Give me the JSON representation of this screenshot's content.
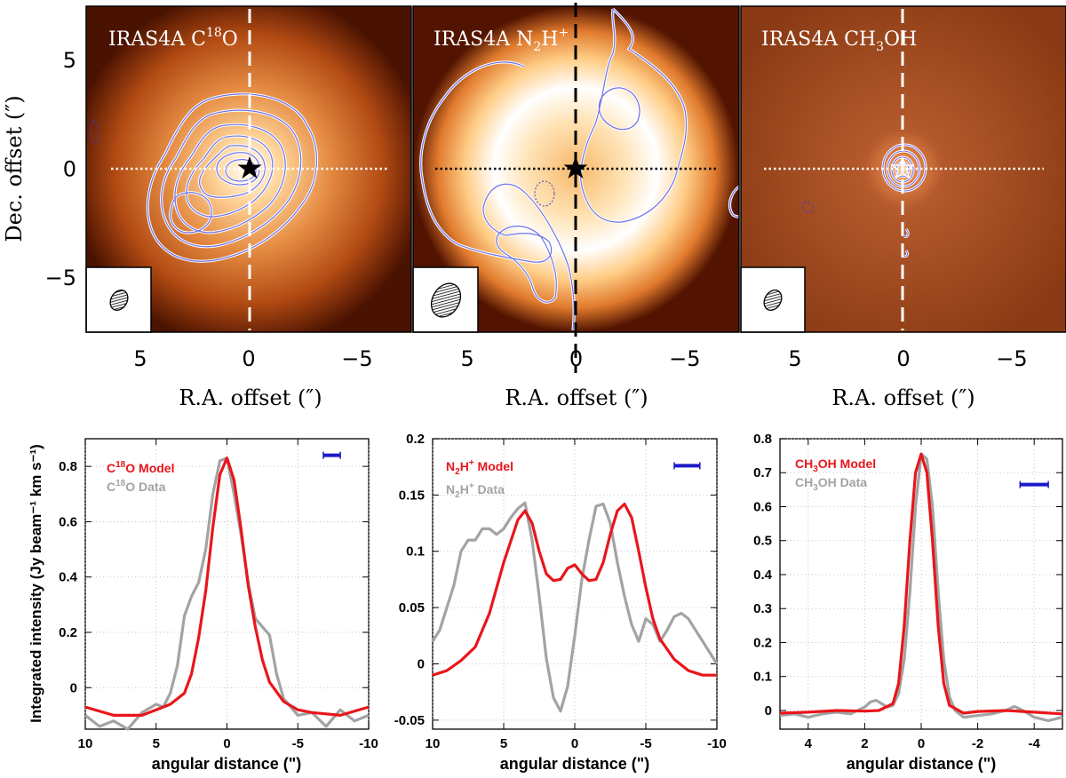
{
  "chart_data": [
    {
      "type": "heatmap",
      "title": "IRAS4A C18O",
      "title_parts": [
        "IRAS4A C",
        "18",
        "O"
      ],
      "xlabel": "R.A. offset (″)",
      "ylabel": "Dec. offset (″)",
      "xlim": [
        7.5,
        -7.5
      ],
      "ylim": [
        -7.5,
        7.5
      ],
      "xticks": [
        5,
        0,
        -5
      ],
      "yticks": [
        5,
        0,
        -5
      ],
      "xtick_labels": [
        "5",
        "0",
        "−5"
      ],
      "ytick_labels": [
        "5",
        "0",
        "−5"
      ],
      "source_position": [
        0,
        0
      ],
      "peak_offset": [
        0.3,
        0.1
      ],
      "colormap": "black-orange-white"
    },
    {
      "type": "heatmap",
      "title": "IRAS4A N2H+",
      "title_parts": [
        "IRAS4A N",
        "2",
        "H",
        "+"
      ],
      "xlabel": "R.A. offset (″)",
      "xlim": [
        7.5,
        -7.5
      ],
      "ylim": [
        -7.5,
        7.5
      ],
      "xticks": [
        5,
        0,
        -5
      ],
      "xtick_labels": [
        "5",
        "0",
        "−5"
      ],
      "source_position": [
        0,
        0
      ],
      "ring_radius_arcsec": 3.5,
      "colormap": "black-orange-white"
    },
    {
      "type": "heatmap",
      "title": "IRAS4A CH3OH",
      "title_parts": [
        "IRAS4A CH",
        "3",
        "OH"
      ],
      "xlabel": "R.A. offset (″)",
      "xlim": [
        7.5,
        -7.5
      ],
      "ylim": [
        -7.5,
        7.5
      ],
      "xticks": [
        5,
        0,
        -5
      ],
      "xtick_labels": [
        "5",
        "0",
        "−5"
      ],
      "source_position": [
        0,
        0
      ],
      "colormap": "black-orange-white"
    },
    {
      "type": "line",
      "xlabel": "angular distance (\")",
      "ylabel": "Integrated intensity (Jy beam⁻¹ km s⁻¹)",
      "xlim": [
        10,
        -10
      ],
      "ylim": [
        -0.15,
        0.9
      ],
      "xticks": [
        10,
        5,
        0,
        -5,
        -10
      ],
      "xtick_labels": [
        "10",
        "5",
        "0",
        "-5",
        "-10"
      ],
      "yticks": [
        0,
        0.2,
        0.4,
        0.6,
        0.8
      ],
      "ytick_labels": [
        "0",
        "0.2",
        "0.4",
        "0.6",
        "0.8"
      ],
      "beam_bar": {
        "x": [
          -6.8,
          -8
        ],
        "y": 0.84
      },
      "series": [
        {
          "name": "C18O Model",
          "legend_parts": [
            "C",
            "18",
            "O Model"
          ],
          "color": "#e8161b",
          "x": [
            10,
            8,
            6,
            5,
            4,
            3,
            2.5,
            2,
            1.5,
            1,
            0.5,
            0,
            -0.5,
            -1,
            -1.5,
            -2,
            -2.5,
            -3,
            -4,
            -5,
            -6,
            -8,
            -10
          ],
          "y": [
            -0.07,
            -0.1,
            -0.1,
            -0.08,
            -0.06,
            -0.02,
            0.05,
            0.18,
            0.35,
            0.58,
            0.77,
            0.83,
            0.75,
            0.57,
            0.37,
            0.22,
            0.1,
            0.02,
            -0.05,
            -0.08,
            -0.09,
            -0.1,
            -0.07
          ]
        },
        {
          "name": "C18O Data",
          "legend_parts": [
            "C",
            "18",
            "O Data"
          ],
          "color": "#a3a3a3",
          "x": [
            10,
            9,
            8,
            7,
            6,
            5,
            4.5,
            4,
            3.5,
            3,
            2.5,
            2,
            1.5,
            1,
            0.5,
            0,
            -0.5,
            -1,
            -1.5,
            -2,
            -2.5,
            -3,
            -3.5,
            -4,
            -5,
            -6,
            -7,
            -8,
            -9,
            -10
          ],
          "y": [
            -0.1,
            -0.14,
            -0.12,
            -0.15,
            -0.09,
            -0.06,
            -0.07,
            -0.02,
            0.08,
            0.26,
            0.33,
            0.38,
            0.5,
            0.7,
            0.82,
            0.83,
            0.7,
            0.55,
            0.38,
            0.25,
            0.22,
            0.19,
            0.05,
            -0.04,
            -0.1,
            -0.09,
            -0.14,
            -0.08,
            -0.12,
            -0.1
          ]
        }
      ]
    },
    {
      "type": "line",
      "xlabel": "angular distance (\")",
      "xlim": [
        10,
        -10
      ],
      "ylim": [
        -0.058,
        0.2
      ],
      "xticks": [
        10,
        5,
        0,
        -5,
        -10
      ],
      "xtick_labels": [
        "10",
        "5",
        "0",
        "-5",
        "-10"
      ],
      "yticks": [
        -0.05,
        0,
        0.05,
        0.1,
        0.15,
        0.2
      ],
      "ytick_labels": [
        "-0.05",
        "0",
        "0.05",
        "0.1",
        "0.15",
        "0.2"
      ],
      "beam_bar": {
        "x": [
          -7,
          -8.8
        ],
        "y": 0.176
      },
      "series": [
        {
          "name": "N2H+ Model",
          "legend_parts": [
            "N",
            "2",
            "H",
            "+",
            " Model"
          ],
          "color": "#e8161b",
          "x": [
            10,
            9,
            8,
            7,
            6,
            5,
            4,
            3.5,
            3,
            2.5,
            2,
            1.5,
            1,
            0.5,
            0,
            -0.5,
            -1,
            -1.5,
            -2,
            -2.5,
            -3,
            -3.5,
            -4,
            -4.5,
            -5,
            -5.5,
            -6,
            -7,
            -8,
            -9,
            -10
          ],
          "y": [
            -0.01,
            -0.006,
            0.003,
            0.015,
            0.045,
            0.09,
            0.128,
            0.136,
            0.125,
            0.1,
            0.08,
            0.074,
            0.075,
            0.085,
            0.088,
            0.08,
            0.074,
            0.075,
            0.09,
            0.115,
            0.136,
            0.142,
            0.13,
            0.1,
            0.068,
            0.04,
            0.022,
            0.004,
            -0.006,
            -0.01,
            -0.01
          ]
        },
        {
          "name": "N2H+ Data",
          "legend_parts": [
            "N",
            "2",
            "H",
            "+",
            " Data"
          ],
          "color": "#a3a3a3",
          "x": [
            10,
            9.5,
            9,
            8.5,
            8,
            7.5,
            7,
            6.5,
            6,
            5.5,
            5,
            4.5,
            4,
            3.5,
            3,
            2.5,
            2,
            1.5,
            1,
            0.5,
            0,
            -0.5,
            -1,
            -1.5,
            -2,
            -2.5,
            -3,
            -3.5,
            -4,
            -4.5,
            -5,
            -5.5,
            -6,
            -6.5,
            -7,
            -7.5,
            -8,
            -8.5,
            -9,
            -10
          ],
          "y": [
            0.02,
            0.03,
            0.05,
            0.07,
            0.1,
            0.11,
            0.11,
            0.12,
            0.12,
            0.115,
            0.12,
            0.13,
            0.138,
            0.143,
            0.11,
            0.06,
            0.005,
            -0.03,
            -0.042,
            -0.02,
            0.025,
            0.075,
            0.11,
            0.14,
            0.142,
            0.125,
            0.09,
            0.06,
            0.035,
            0.02,
            0.04,
            0.035,
            0.02,
            0.03,
            0.042,
            0.045,
            0.04,
            0.03,
            0.02,
            0.0
          ]
        }
      ]
    },
    {
      "type": "line",
      "xlabel": "angular distance (\")",
      "xlim": [
        5,
        -5
      ],
      "ylim": [
        -0.055,
        0.8
      ],
      "xticks": [
        4,
        2,
        0,
        -2,
        -4
      ],
      "xtick_labels": [
        "4",
        "2",
        "0",
        "-2",
        "-4"
      ],
      "yticks": [
        0,
        0.1,
        0.2,
        0.3,
        0.4,
        0.5,
        0.6,
        0.7,
        0.8
      ],
      "ytick_labels": [
        "0",
        "0.1",
        "0.2",
        "0.3",
        "0.4",
        "0.5",
        "0.6",
        "0.7",
        "0.8"
      ],
      "beam_bar": {
        "x": [
          -3.5,
          -4.5
        ],
        "y": 0.665
      },
      "series": [
        {
          "name": "CH3OH Model",
          "legend_parts": [
            "CH",
            "3",
            "OH Model"
          ],
          "color": "#e8161b",
          "x": [
            5,
            4,
            3,
            2,
            1.5,
            1,
            0.8,
            0.6,
            0.4,
            0.2,
            0,
            -0.2,
            -0.4,
            -0.6,
            -0.8,
            -1,
            -1.5,
            -2,
            -3,
            -4,
            -5
          ],
          "y": [
            -0.008,
            -0.005,
            0.0,
            -0.002,
            0.0,
            0.02,
            0.08,
            0.25,
            0.5,
            0.7,
            0.755,
            0.7,
            0.5,
            0.25,
            0.08,
            0.015,
            -0.008,
            -0.003,
            0.0,
            -0.005,
            -0.01
          ]
        },
        {
          "name": "CH3OH Data",
          "legend_parts": [
            "CH",
            "3",
            "OH Data"
          ],
          "color": "#a3a3a3",
          "x": [
            5,
            4.5,
            4,
            3.5,
            3,
            2.5,
            2,
            1.8,
            1.6,
            1.4,
            1.2,
            1,
            0.8,
            0.6,
            0.4,
            0.2,
            0,
            -0.2,
            -0.4,
            -0.6,
            -0.8,
            -1,
            -1.2,
            -1.5,
            -2,
            -2.5,
            -3,
            -3.3,
            -3.6,
            -4,
            -4.5,
            -5
          ],
          "y": [
            -0.015,
            -0.01,
            -0.02,
            -0.01,
            -0.005,
            -0.01,
            0.01,
            0.025,
            0.03,
            0.02,
            0.01,
            0.015,
            0.05,
            0.15,
            0.35,
            0.6,
            0.755,
            0.74,
            0.6,
            0.35,
            0.15,
            0.04,
            0.0,
            -0.02,
            -0.015,
            -0.01,
            0.0,
            0.012,
            0.0,
            -0.02,
            -0.03,
            -0.02
          ]
        }
      ]
    }
  ]
}
